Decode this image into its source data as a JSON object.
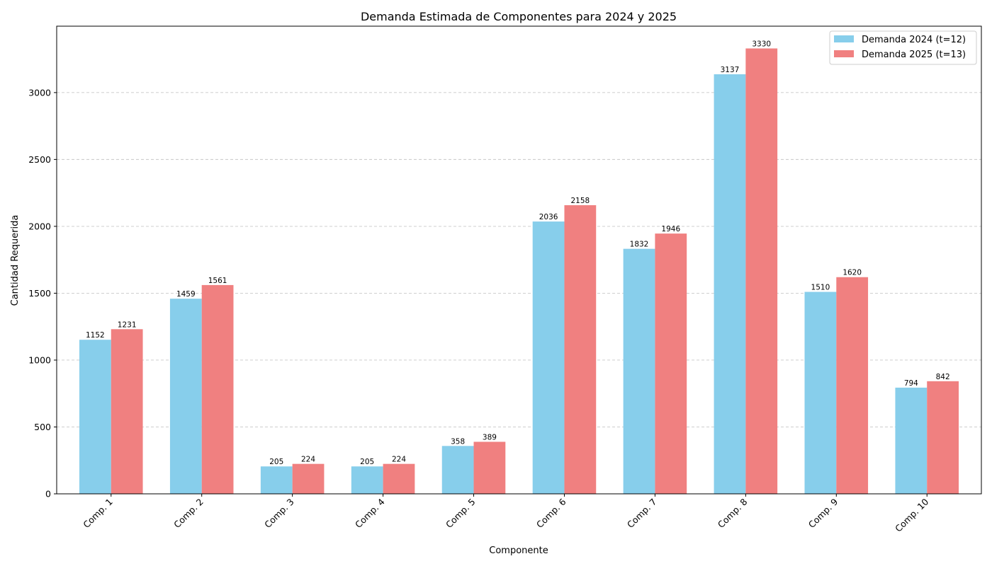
{
  "chart_data": {
    "type": "bar",
    "title": "Demanda Estimada de Componentes para 2024 y 2025",
    "xlabel": "Componente",
    "ylabel": "Cantidad Requerida",
    "categories": [
      "Comp. 1",
      "Comp. 2",
      "Comp. 3",
      "Comp. 4",
      "Comp. 5",
      "Comp. 6",
      "Comp. 7",
      "Comp. 8",
      "Comp. 9",
      "Comp. 10"
    ],
    "series": [
      {
        "name": "Demanda 2024 (t=12)",
        "color": "#87ceeb",
        "values": [
          1152,
          1459,
          205,
          205,
          358,
          2036,
          1832,
          3137,
          1510,
          794
        ]
      },
      {
        "name": "Demanda 2025 (t=13)",
        "color": "#f08080",
        "values": [
          1231,
          1561,
          224,
          224,
          389,
          2158,
          1946,
          3330,
          1620,
          842
        ]
      }
    ],
    "ylim": [
      0,
      3496.5
    ],
    "yticks": [
      0,
      500,
      1000,
      1500,
      2000,
      2500,
      3000
    ],
    "grid": "horizontal-dashed",
    "legend_position": "top-right",
    "xtick_rotation": "45-degrees"
  }
}
